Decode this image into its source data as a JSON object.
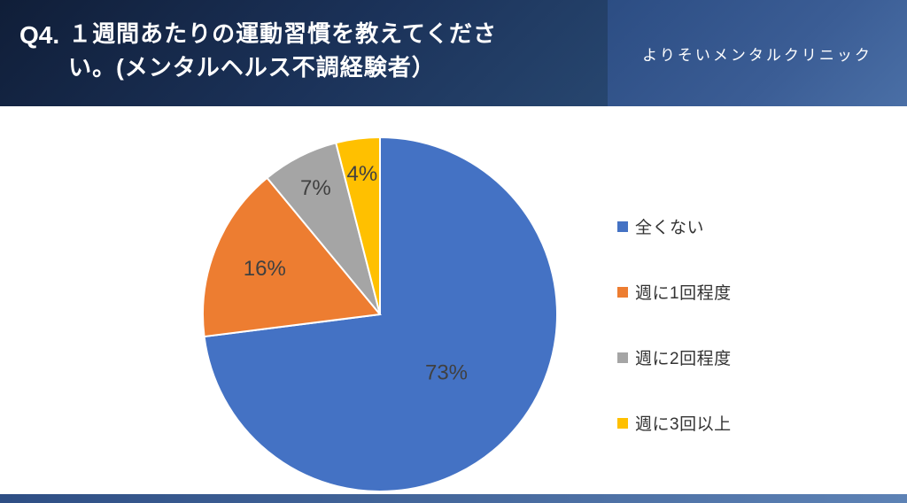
{
  "header": {
    "question_number": "Q4.",
    "title_line1": "１週間あたりの運動習慣を教えてくださ",
    "title_line2": "い。(メンタルヘルス不調経験者）",
    "brand": "よりそいメンタルクリニック"
  },
  "chart_data": {
    "type": "pie",
    "title": "Q4. １週間あたりの運動習慣を教えてください。(メンタルヘルス不調経験者）",
    "labels": [
      "全くない",
      "週に1回程度",
      "週に2回程度",
      "週に3回以上"
    ],
    "values": [
      73,
      16,
      7,
      4
    ],
    "data_labels": [
      "73%",
      "16%",
      "7%",
      "4%"
    ],
    "unit": "%",
    "colors": [
      "#4472c4",
      "#ed7d31",
      "#a5a5a5",
      "#ffc000"
    ],
    "label_color": "#404040",
    "start_angle_deg": 0,
    "direction": "clockwise",
    "legend_position": "right"
  }
}
